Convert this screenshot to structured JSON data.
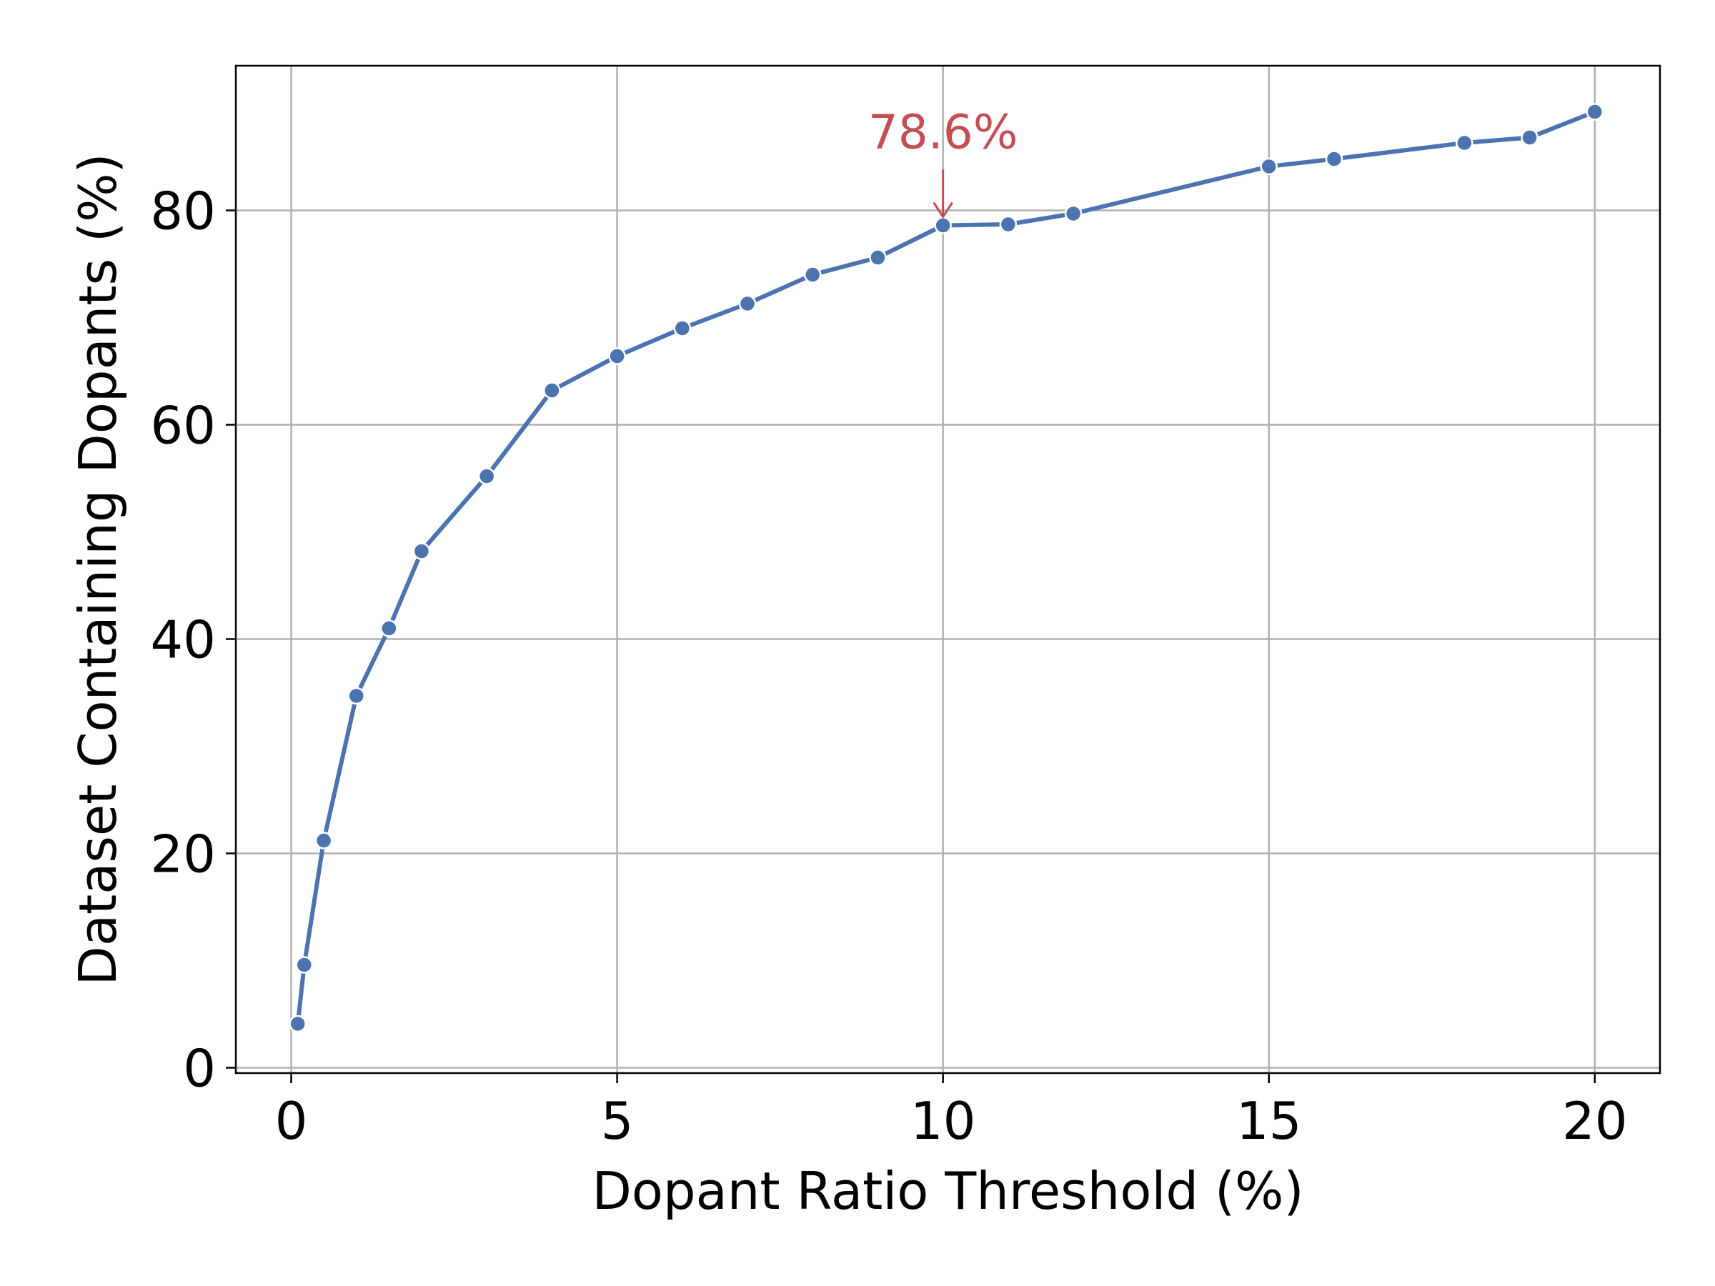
{
  "chart_data": {
    "type": "line",
    "title": "",
    "xlabel": "Dopant Ratio Threshold (%)",
    "ylabel": "Dataset Containing Dopants (%)",
    "xlim": [
      -0.85,
      21.0
    ],
    "ylim": [
      -0.5,
      93.5
    ],
    "xticks": [
      0,
      5,
      10,
      15,
      20
    ],
    "yticks": [
      0,
      20,
      40,
      60,
      80
    ],
    "grid": true,
    "legend": "none",
    "series": [
      {
        "color": "#4c72b0",
        "marker": "circle",
        "x": [
          0.1,
          0.2,
          0.5,
          1,
          1.5,
          2,
          3,
          4,
          5,
          6,
          7,
          8,
          9,
          10,
          11,
          12,
          15,
          16,
          18,
          19,
          20
        ],
        "y": [
          4.1,
          9.6,
          21.2,
          34.7,
          41.0,
          48.2,
          55.2,
          63.2,
          66.4,
          69.0,
          71.3,
          74.0,
          75.6,
          78.6,
          78.7,
          79.7,
          84.1,
          84.8,
          86.3,
          86.8,
          89.2
        ]
      }
    ],
    "annotations": [
      {
        "text": "78.6%",
        "x": 10,
        "y": 78.6,
        "color": "#c44e52"
      }
    ]
  }
}
